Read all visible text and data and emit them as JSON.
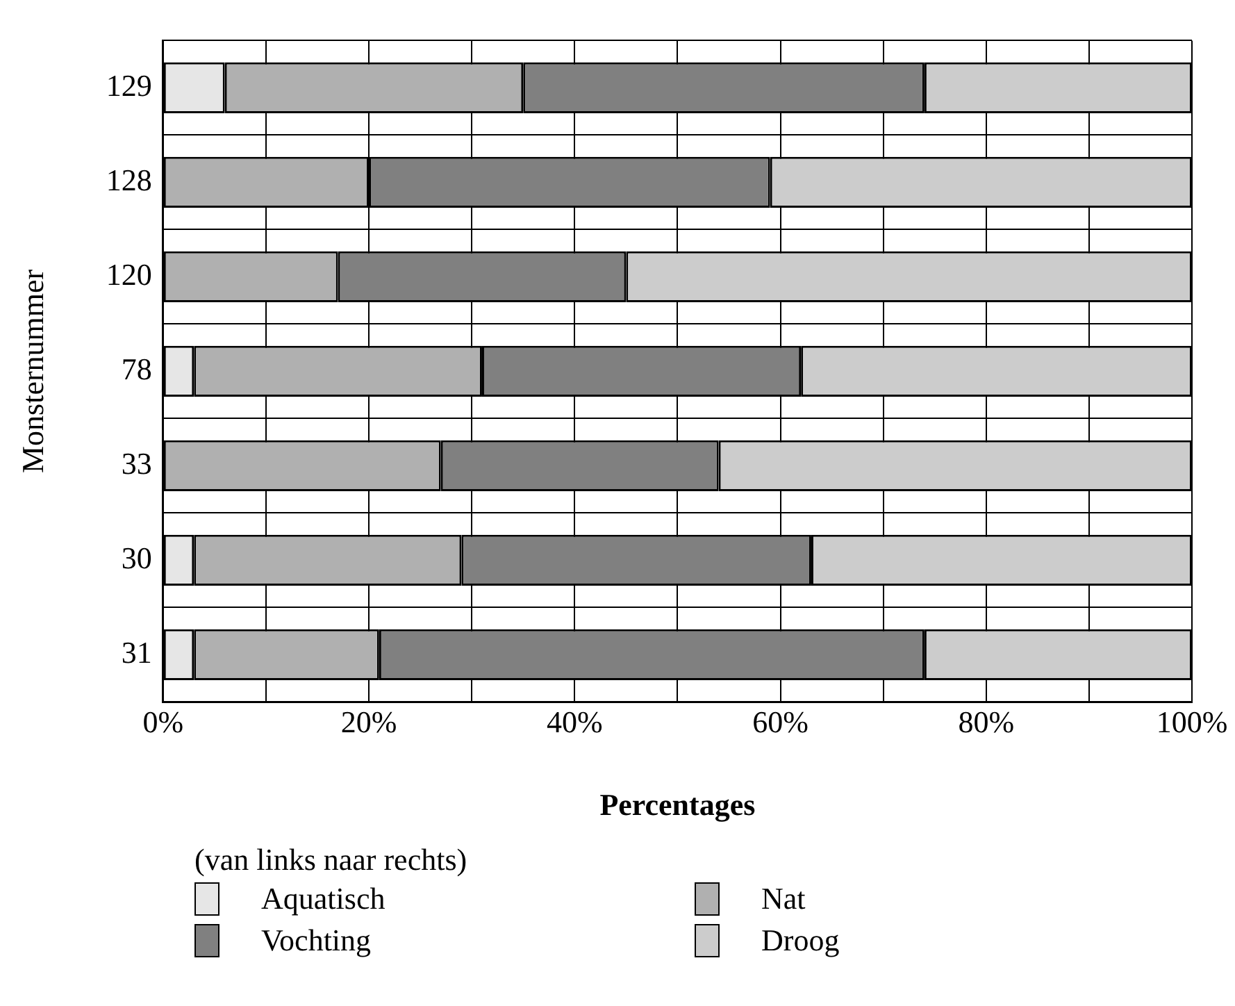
{
  "chart_data": {
    "type": "bar",
    "orientation": "horizontal",
    "stacked": true,
    "xlabel": "Percentages",
    "ylabel": "Monsternummer",
    "legend_title": "(van links naar rechts)",
    "legend": "bottom",
    "grid": true,
    "categories": [
      "129",
      "128",
      "120",
      "78",
      "33",
      "30",
      "31"
    ],
    "series": [
      {
        "name": "Aquatisch",
        "color": "#e6e6e6",
        "values": [
          6,
          0,
          0,
          3,
          0,
          3,
          3
        ]
      },
      {
        "name": "Nat",
        "color": "#b0b0b0",
        "values": [
          29,
          20,
          17,
          28,
          27,
          26,
          18
        ]
      },
      {
        "name": "Vochting",
        "color": "#808080",
        "values": [
          39,
          39,
          28,
          31,
          27,
          34,
          53
        ]
      },
      {
        "name": "Droog",
        "color": "#cccccc",
        "values": [
          26,
          41,
          55,
          38,
          46,
          37,
          26
        ]
      }
    ],
    "xlim": [
      0,
      100
    ],
    "xticks": [
      {
        "value": 0,
        "label": "0%"
      },
      {
        "value": 10,
        "label": null
      },
      {
        "value": 20,
        "label": "20%"
      },
      {
        "value": 30,
        "label": null
      },
      {
        "value": 40,
        "label": "40%"
      },
      {
        "value": 50,
        "label": null
      },
      {
        "value": 60,
        "label": "60%"
      },
      {
        "value": 70,
        "label": null
      },
      {
        "value": 80,
        "label": "80%"
      },
      {
        "value": 90,
        "label": null
      },
      {
        "value": 100,
        "label": "100%"
      }
    ]
  }
}
